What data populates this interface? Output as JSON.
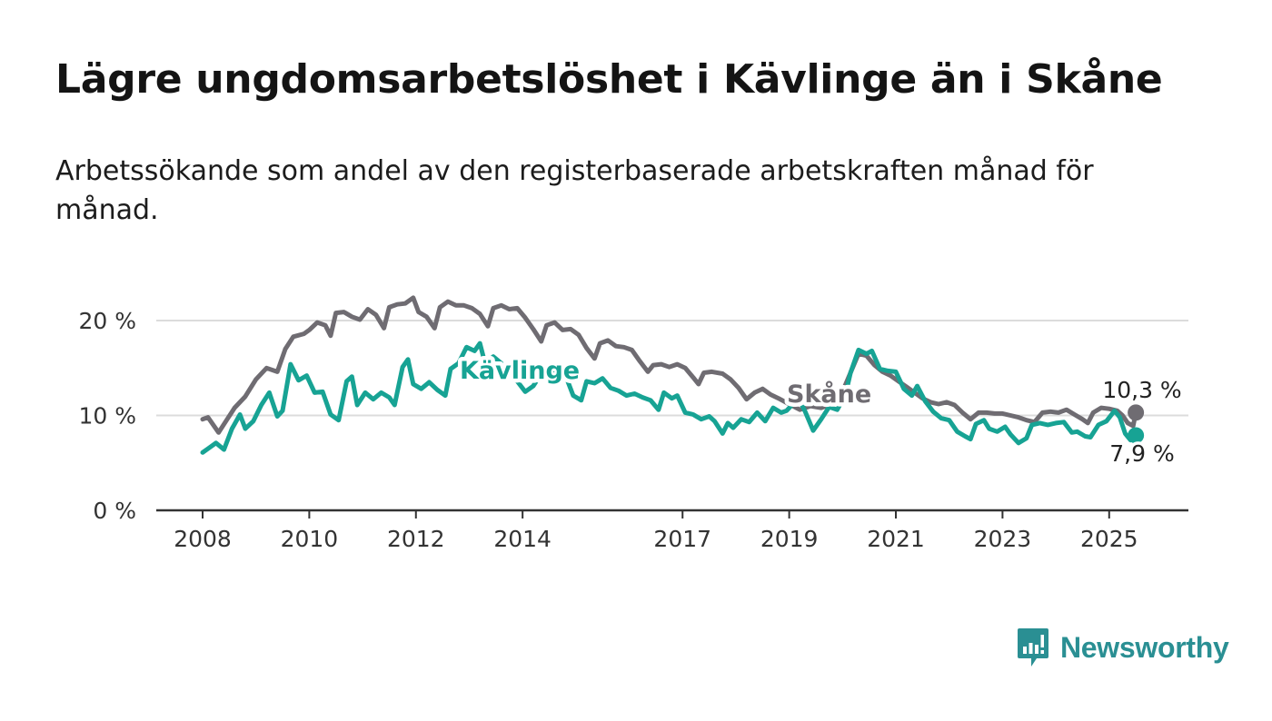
{
  "title": "Lägre ungdomsarbetslöshet i Kävlinge än i Skåne",
  "subtitle": "Arbetssökande som andel av den registerbaserade arbetskraften månad för månad.",
  "brand": {
    "name": "Newsworthy",
    "color": "#2a8f93",
    "icon": "bar-chart-speech-icon"
  },
  "chart_data": {
    "type": "line",
    "title": "",
    "xlabel": "",
    "ylabel": "",
    "x_unit": "year",
    "xlim": [
      2008,
      2025.6
    ],
    "ylim": [
      0,
      20
    ],
    "grid": true,
    "x_ticks": [
      {
        "value": 2008,
        "label": "2008"
      },
      {
        "value": 2010,
        "label": "2010"
      },
      {
        "value": 2012,
        "label": "2012"
      },
      {
        "value": 2014,
        "label": "2014"
      },
      {
        "value": 2017,
        "label": "2017"
      },
      {
        "value": 2019,
        "label": "2019"
      },
      {
        "value": 2021,
        "label": "2021"
      },
      {
        "value": 2023,
        "label": "2023"
      },
      {
        "value": 2025,
        "label": "2025"
      }
    ],
    "y_ticks": [
      {
        "value": 0,
        "label": "0 %"
      },
      {
        "value": 10,
        "label": "10 %"
      },
      {
        "value": 20,
        "label": "20 %"
      }
    ],
    "series": [
      {
        "name": "Skåne",
        "color": "#6f6c72",
        "end_label": "10,3 %",
        "points": [
          [
            2008.0,
            9.6
          ],
          [
            2008.1,
            9.8
          ],
          [
            2008.3,
            8.2
          ],
          [
            2008.45,
            9.5
          ],
          [
            2008.6,
            10.8
          ],
          [
            2008.8,
            12.0
          ],
          [
            2009.0,
            13.8
          ],
          [
            2009.2,
            15.0
          ],
          [
            2009.4,
            14.6
          ],
          [
            2009.55,
            17.0
          ],
          [
            2009.7,
            18.3
          ],
          [
            2009.9,
            18.6
          ],
          [
            2010.0,
            19.0
          ],
          [
            2010.15,
            19.8
          ],
          [
            2010.3,
            19.5
          ],
          [
            2010.4,
            18.4
          ],
          [
            2010.5,
            20.8
          ],
          [
            2010.65,
            20.9
          ],
          [
            2010.8,
            20.4
          ],
          [
            2010.95,
            20.1
          ],
          [
            2011.1,
            21.2
          ],
          [
            2011.25,
            20.6
          ],
          [
            2011.4,
            19.2
          ],
          [
            2011.5,
            21.4
          ],
          [
            2011.65,
            21.7
          ],
          [
            2011.8,
            21.8
          ],
          [
            2011.95,
            22.4
          ],
          [
            2012.05,
            20.9
          ],
          [
            2012.2,
            20.4
          ],
          [
            2012.35,
            19.2
          ],
          [
            2012.45,
            21.4
          ],
          [
            2012.6,
            22.0
          ],
          [
            2012.75,
            21.6
          ],
          [
            2012.9,
            21.6
          ],
          [
            2013.05,
            21.3
          ],
          [
            2013.2,
            20.7
          ],
          [
            2013.35,
            19.4
          ],
          [
            2013.45,
            21.3
          ],
          [
            2013.6,
            21.6
          ],
          [
            2013.75,
            21.2
          ],
          [
            2013.9,
            21.3
          ],
          [
            2014.05,
            20.3
          ],
          [
            2014.2,
            19.1
          ],
          [
            2014.35,
            17.8
          ],
          [
            2014.45,
            19.5
          ],
          [
            2014.6,
            19.8
          ],
          [
            2014.75,
            19.0
          ],
          [
            2014.9,
            19.1
          ],
          [
            2015.05,
            18.5
          ],
          [
            2015.2,
            17.1
          ],
          [
            2015.35,
            16.0
          ],
          [
            2015.45,
            17.6
          ],
          [
            2015.6,
            17.9
          ],
          [
            2015.75,
            17.3
          ],
          [
            2015.9,
            17.2
          ],
          [
            2016.05,
            16.9
          ],
          [
            2016.2,
            15.7
          ],
          [
            2016.35,
            14.6
          ],
          [
            2016.45,
            15.3
          ],
          [
            2016.6,
            15.4
          ],
          [
            2016.75,
            15.1
          ],
          [
            2016.9,
            15.4
          ],
          [
            2017.05,
            15.0
          ],
          [
            2017.2,
            14.0
          ],
          [
            2017.3,
            13.3
          ],
          [
            2017.4,
            14.5
          ],
          [
            2017.55,
            14.6
          ],
          [
            2017.75,
            14.4
          ],
          [
            2017.9,
            13.8
          ],
          [
            2018.05,
            12.9
          ],
          [
            2018.2,
            11.7
          ],
          [
            2018.35,
            12.4
          ],
          [
            2018.5,
            12.8
          ],
          [
            2018.65,
            12.2
          ],
          [
            2018.8,
            11.8
          ],
          [
            2019.0,
            11.2
          ],
          [
            2019.2,
            10.6
          ],
          [
            2019.4,
            11.0
          ],
          [
            2019.6,
            10.8
          ],
          [
            2019.8,
            11.2
          ],
          [
            2020.0,
            12.5
          ],
          [
            2020.15,
            14.5
          ],
          [
            2020.3,
            16.5
          ],
          [
            2020.45,
            16.3
          ],
          [
            2020.6,
            15.3
          ],
          [
            2020.75,
            14.6
          ],
          [
            2020.9,
            14.2
          ],
          [
            2021.05,
            13.6
          ],
          [
            2021.2,
            13.0
          ],
          [
            2021.35,
            12.4
          ],
          [
            2021.5,
            11.8
          ],
          [
            2021.65,
            11.4
          ],
          [
            2021.8,
            11.2
          ],
          [
            2021.95,
            11.4
          ],
          [
            2022.1,
            11.1
          ],
          [
            2022.25,
            10.3
          ],
          [
            2022.4,
            9.6
          ],
          [
            2022.55,
            10.3
          ],
          [
            2022.7,
            10.3
          ],
          [
            2022.85,
            10.2
          ],
          [
            2023.0,
            10.2
          ],
          [
            2023.15,
            10.0
          ],
          [
            2023.3,
            9.8
          ],
          [
            2023.45,
            9.5
          ],
          [
            2023.6,
            9.3
          ],
          [
            2023.75,
            10.3
          ],
          [
            2023.9,
            10.4
          ],
          [
            2024.05,
            10.3
          ],
          [
            2024.2,
            10.6
          ],
          [
            2024.35,
            10.1
          ],
          [
            2024.5,
            9.6
          ],
          [
            2024.6,
            9.2
          ],
          [
            2024.7,
            10.3
          ],
          [
            2024.85,
            10.8
          ],
          [
            2025.0,
            10.7
          ],
          [
            2025.15,
            10.5
          ],
          [
            2025.25,
            10.0
          ],
          [
            2025.35,
            9.2
          ],
          [
            2025.45,
            8.9
          ],
          [
            2025.5,
            10.3
          ]
        ]
      },
      {
        "name": "Kävlinge",
        "color": "#17a394",
        "end_label": "7,9 %",
        "points": [
          [
            2008.0,
            6.1
          ],
          [
            2008.1,
            6.5
          ],
          [
            2008.25,
            7.1
          ],
          [
            2008.4,
            6.4
          ],
          [
            2008.55,
            8.6
          ],
          [
            2008.7,
            10.1
          ],
          [
            2008.8,
            8.6
          ],
          [
            2008.95,
            9.4
          ],
          [
            2009.1,
            11.1
          ],
          [
            2009.25,
            12.4
          ],
          [
            2009.4,
            9.9
          ],
          [
            2009.5,
            10.5
          ],
          [
            2009.65,
            15.4
          ],
          [
            2009.8,
            13.7
          ],
          [
            2009.95,
            14.2
          ],
          [
            2010.1,
            12.4
          ],
          [
            2010.25,
            12.5
          ],
          [
            2010.4,
            10.1
          ],
          [
            2010.55,
            9.5
          ],
          [
            2010.7,
            13.6
          ],
          [
            2010.8,
            14.1
          ],
          [
            2010.9,
            11.1
          ],
          [
            2011.05,
            12.4
          ],
          [
            2011.2,
            11.7
          ],
          [
            2011.35,
            12.4
          ],
          [
            2011.5,
            11.9
          ],
          [
            2011.6,
            11.1
          ],
          [
            2011.75,
            15.1
          ],
          [
            2011.85,
            15.9
          ],
          [
            2011.95,
            13.3
          ],
          [
            2012.1,
            12.8
          ],
          [
            2012.25,
            13.5
          ],
          [
            2012.4,
            12.7
          ],
          [
            2012.55,
            12.1
          ],
          [
            2012.65,
            14.9
          ],
          [
            2012.8,
            15.5
          ],
          [
            2012.95,
            17.2
          ],
          [
            2013.1,
            16.8
          ],
          [
            2013.2,
            17.6
          ],
          [
            2013.3,
            15.4
          ],
          [
            2013.45,
            16.2
          ],
          [
            2013.6,
            15.5
          ],
          [
            2013.75,
            14.1
          ],
          [
            2013.9,
            13.6
          ],
          [
            2014.05,
            12.5
          ],
          [
            2014.2,
            13.1
          ],
          [
            2014.35,
            14.4
          ],
          [
            2014.5,
            14.5
          ],
          [
            2014.65,
            15.1
          ],
          [
            2014.8,
            14.3
          ],
          [
            2014.95,
            12.1
          ],
          [
            2015.1,
            11.6
          ],
          [
            2015.2,
            13.6
          ],
          [
            2015.35,
            13.4
          ],
          [
            2015.5,
            13.9
          ],
          [
            2015.65,
            12.9
          ],
          [
            2015.8,
            12.6
          ],
          [
            2015.95,
            12.1
          ],
          [
            2016.1,
            12.3
          ],
          [
            2016.25,
            11.9
          ],
          [
            2016.4,
            11.6
          ],
          [
            2016.55,
            10.6
          ],
          [
            2016.65,
            12.4
          ],
          [
            2016.8,
            11.8
          ],
          [
            2016.9,
            12.1
          ],
          [
            2017.05,
            10.3
          ],
          [
            2017.2,
            10.1
          ],
          [
            2017.35,
            9.6
          ],
          [
            2017.5,
            9.9
          ],
          [
            2017.6,
            9.4
          ],
          [
            2017.75,
            8.1
          ],
          [
            2017.85,
            9.2
          ],
          [
            2017.95,
            8.7
          ],
          [
            2018.1,
            9.6
          ],
          [
            2018.25,
            9.3
          ],
          [
            2018.4,
            10.3
          ],
          [
            2018.55,
            9.4
          ],
          [
            2018.7,
            10.8
          ],
          [
            2018.85,
            10.3
          ],
          [
            2018.95,
            10.5
          ],
          [
            2019.1,
            11.4
          ],
          [
            2019.2,
            11.5
          ],
          [
            2019.3,
            10.4
          ],
          [
            2019.45,
            8.4
          ],
          [
            2019.6,
            9.6
          ],
          [
            2019.75,
            10.9
          ],
          [
            2019.9,
            10.6
          ],
          [
            2020.05,
            12.1
          ],
          [
            2020.15,
            14.5
          ],
          [
            2020.3,
            16.9
          ],
          [
            2020.45,
            16.5
          ],
          [
            2020.55,
            16.8
          ],
          [
            2020.7,
            14.9
          ],
          [
            2020.85,
            14.7
          ],
          [
            2021.0,
            14.6
          ],
          [
            2021.15,
            12.8
          ],
          [
            2021.3,
            12.1
          ],
          [
            2021.4,
            13.1
          ],
          [
            2021.55,
            11.5
          ],
          [
            2021.7,
            10.4
          ],
          [
            2021.85,
            9.7
          ],
          [
            2022.0,
            9.5
          ],
          [
            2022.15,
            8.3
          ],
          [
            2022.3,
            7.8
          ],
          [
            2022.4,
            7.5
          ],
          [
            2022.5,
            9.1
          ],
          [
            2022.65,
            9.5
          ],
          [
            2022.75,
            8.6
          ],
          [
            2022.9,
            8.3
          ],
          [
            2023.05,
            8.8
          ],
          [
            2023.15,
            8.0
          ],
          [
            2023.3,
            7.1
          ],
          [
            2023.45,
            7.6
          ],
          [
            2023.55,
            9.0
          ],
          [
            2023.7,
            9.2
          ],
          [
            2023.85,
            9.0
          ],
          [
            2024.0,
            9.2
          ],
          [
            2024.15,
            9.3
          ],
          [
            2024.3,
            8.2
          ],
          [
            2024.4,
            8.3
          ],
          [
            2024.55,
            7.8
          ],
          [
            2024.65,
            7.7
          ],
          [
            2024.8,
            9.0
          ],
          [
            2024.95,
            9.4
          ],
          [
            2025.1,
            10.5
          ],
          [
            2025.2,
            9.8
          ],
          [
            2025.3,
            8.1
          ],
          [
            2025.4,
            7.4
          ],
          [
            2025.5,
            7.9
          ]
        ]
      }
    ]
  }
}
